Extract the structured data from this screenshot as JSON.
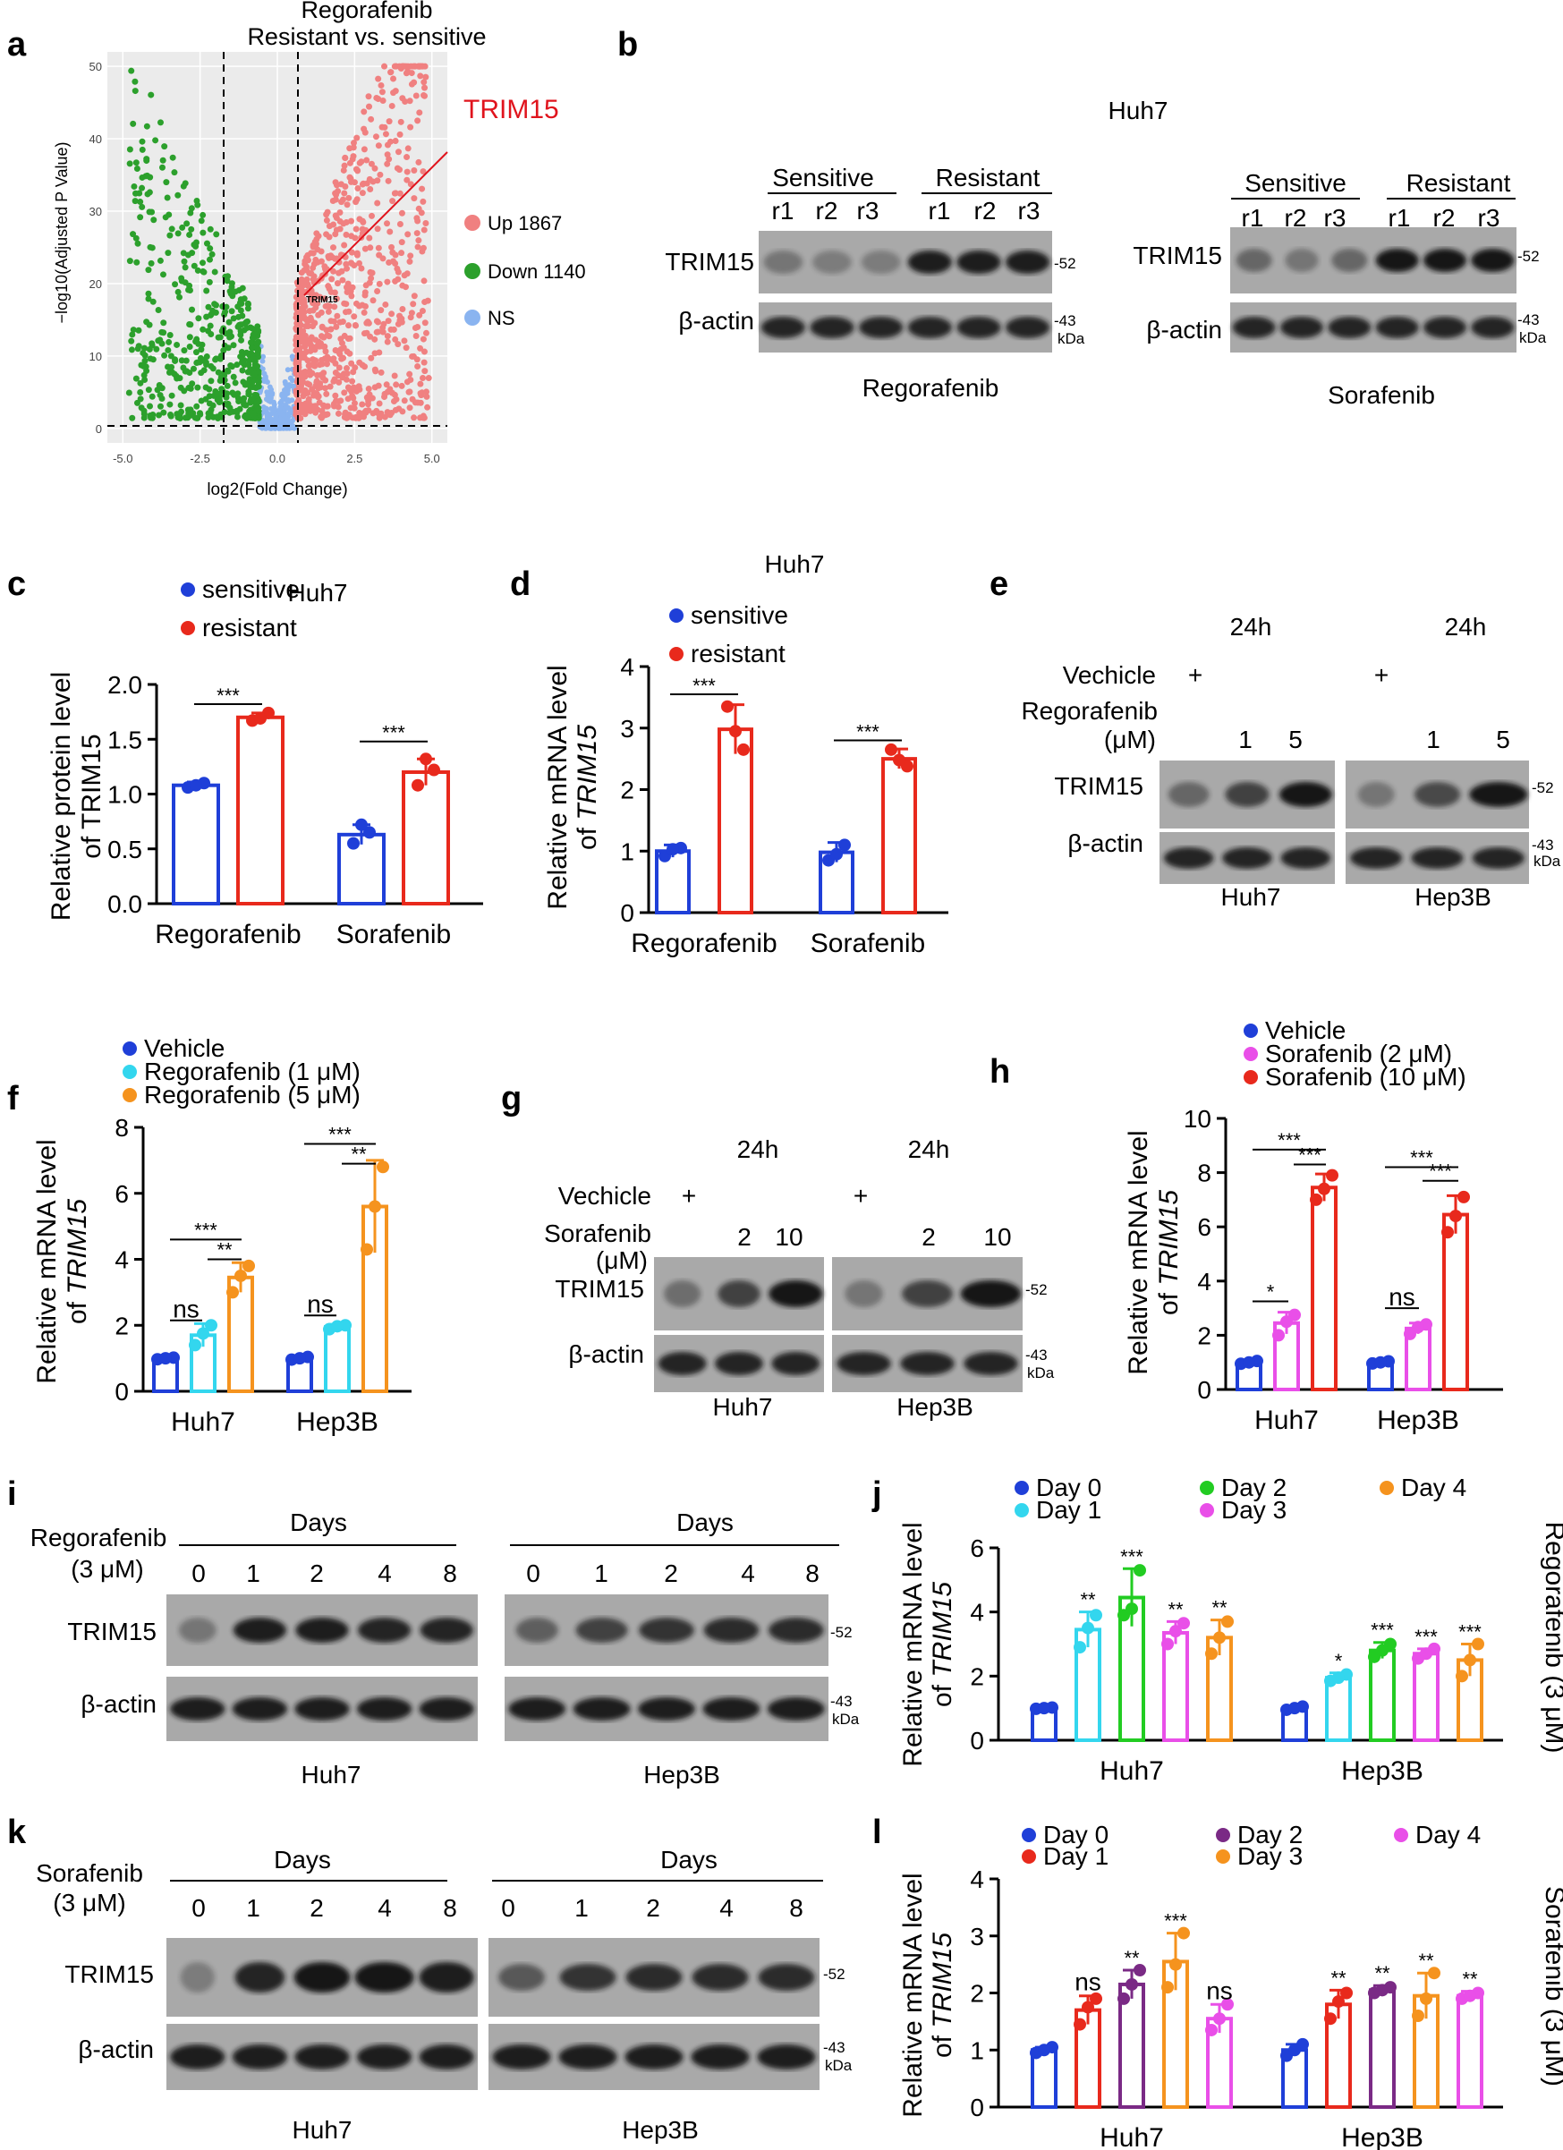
{
  "panel_labels": [
    "a",
    "b",
    "c",
    "d",
    "e",
    "f",
    "g",
    "h",
    "i",
    "j",
    "k",
    "l"
  ],
  "colors": {
    "up": "#f08080",
    "down": "#2ca02c",
    "ns": "#8ab4f0",
    "blue": "#1f3fd8",
    "red": "#e8291c",
    "cyan": "#33d6ee",
    "orange": "#f5931e",
    "magenta": "#e94fe8",
    "green": "#22cc22",
    "purple": "#7a2a85",
    "trim_red": "#e0141d"
  },
  "panel_a": {
    "title_line1": "Regorafenib",
    "title_line2": "Resistant vs. sensitive",
    "highlight_label": "TRIM15",
    "point_label": "TRIM15",
    "ylabel": "−log10(Adjusted P Value)",
    "xlabel": "log2(Fold Change)",
    "legend": [
      "Up 1867",
      "Down 1140",
      "NS"
    ]
  },
  "panel_b": {
    "cell_line": "Huh7",
    "groups": [
      "Sensitive",
      "Resistant"
    ],
    "lanes": [
      "r1",
      "r2",
      "r3",
      "r1",
      "r2",
      "r3"
    ],
    "protein": "TRIM15",
    "loading": "β-actin",
    "mw_52": "-52",
    "mw_43": "-43",
    "kda": "kDa",
    "drug_left": "Regorafenib",
    "drug_right": "Sorafenib"
  },
  "panel_e": {
    "time": "24h",
    "vehicle_label": "Vechicle",
    "plus": "+",
    "drug_label": "Regorafenib",
    "unit": "(μM)",
    "doses": [
      "1",
      "5"
    ],
    "protein": "TRIM15",
    "loading": "β-actin",
    "cells": [
      "Huh7",
      "Hep3B"
    ],
    "mw_52": "-52",
    "mw_43": "-43",
    "kda": "kDa"
  },
  "panel_g": {
    "time": "24h",
    "vehicle_label": "Vechicle",
    "plus": "+",
    "drug_label": "Sorafenib",
    "unit": "(μM)",
    "doses": [
      "2",
      "10"
    ],
    "protein": "TRIM15",
    "loading": "β-actin",
    "cells": [
      "Huh7",
      "Hep3B"
    ],
    "mw_52": "-52",
    "mw_43": "-43",
    "kda": "kDa"
  },
  "panel_i": {
    "drug_label": "Regorafenib",
    "dose": "(3 μM)",
    "days_label": "Days",
    "days": [
      "0",
      "1",
      "2",
      "4",
      "8"
    ],
    "protein": "TRIM15",
    "loading": "β-actin",
    "cells": [
      "Huh7",
      "Hep3B"
    ],
    "mw_52": "-52",
    "mw_43": "-43",
    "kda": "kDa"
  },
  "panel_k": {
    "drug_label": "Sorafenib",
    "dose": "(3 μM)",
    "days_label": "Days",
    "days": [
      "0",
      "1",
      "2",
      "4",
      "8"
    ],
    "protein": "TRIM15",
    "loading": "β-actin",
    "cells": [
      "Huh7",
      "Hep3B"
    ],
    "mw_52": "-52",
    "mw_43": "-43",
    "kda": "kDa"
  },
  "chart_data": [
    {
      "panel": "a",
      "type": "scatter",
      "title": "Regorafenib Resistant vs. sensitive",
      "xlabel": "log2(Fold Change)",
      "ylabel": "−log10(Adjusted P Value)",
      "xlim": [
        -5.5,
        5.5
      ],
      "ylim": [
        -2,
        52
      ],
      "xticks": [
        "-5.0",
        "-2.5",
        "0.0",
        "2.5",
        "5.0"
      ],
      "yticks": [
        "0",
        "10",
        "20",
        "30",
        "40",
        "50"
      ],
      "thresholds": {
        "x": [
          -0.58,
          0.58
        ],
        "y": 1.3
      },
      "legend": [
        "Up 1867",
        "Down 1140",
        "NS"
      ],
      "annotation": {
        "label": "TRIM15",
        "x": 0.7,
        "y": 19
      }
    },
    {
      "panel": "c",
      "type": "bar",
      "title": "Huh7",
      "ylabel": "Relative protein level of TRIM15",
      "categories": [
        "Regorafenib",
        "Sorafenib"
      ],
      "ylim": [
        0,
        2.0
      ],
      "yticks": [
        "0.0",
        "0.5",
        "1.0",
        "1.5",
        "2.0"
      ],
      "series": [
        {
          "name": "sensitive",
          "values": [
            1.08,
            0.63
          ],
          "errors": [
            0.03,
            0.09
          ],
          "points": [
            [
              1.06,
              1.1,
              1.08
            ],
            [
              0.55,
              0.65,
              0.72
            ]
          ]
        },
        {
          "name": "resistant",
          "values": [
            1.7,
            1.2
          ],
          "errors": [
            0.04,
            0.12
          ],
          "points": [
            [
              1.67,
              1.74,
              1.69
            ],
            [
              1.08,
              1.22,
              1.32
            ]
          ]
        }
      ],
      "significance": [
        "***",
        "***"
      ]
    },
    {
      "panel": "d",
      "type": "bar",
      "title": "Huh7",
      "ylabel": "Relative mRNA level of TRIM15",
      "categories": [
        "Regorafenib",
        "Sorafenib"
      ],
      "ylim": [
        0,
        4
      ],
      "yticks": [
        "0",
        "1",
        "2",
        "3",
        "4"
      ],
      "series": [
        {
          "name": "sensitive",
          "values": [
            1.0,
            0.98
          ],
          "errors": [
            0.1,
            0.16
          ],
          "points": [
            [
              0.92,
              1.05,
              1.03
            ],
            [
              0.85,
              1.1,
              0.95
            ]
          ]
        },
        {
          "name": "resistant",
          "values": [
            2.98,
            2.5
          ],
          "errors": [
            0.4,
            0.16
          ],
          "points": [
            [
              3.35,
              2.65,
              2.95
            ],
            [
              2.65,
              2.38,
              2.48
            ]
          ]
        }
      ],
      "significance": [
        "***",
        "***"
      ]
    },
    {
      "panel": "f",
      "type": "bar",
      "ylabel": "Relative mRNA level of TRIM15",
      "categories": [
        "Huh7",
        "Hep3B"
      ],
      "ylim": [
        0,
        8
      ],
      "yticks": [
        "0",
        "2",
        "4",
        "6",
        "8"
      ],
      "series": [
        {
          "name": "Vehicle",
          "values": [
            1.0,
            1.0
          ],
          "errors": [
            0.05,
            0.05
          ],
          "points": [
            [
              0.97,
              1.02,
              1.0
            ],
            [
              0.96,
              1.04,
              1.0
            ]
          ]
        },
        {
          "name": "Regorafenib (1 μM)",
          "values": [
            1.7,
            1.95
          ],
          "errors": [
            0.35,
            0.08
          ],
          "points": [
            [
              1.4,
              2.0,
              1.75
            ],
            [
              1.88,
              2.0,
              1.97
            ]
          ]
        },
        {
          "name": "Regorafenib (5 μM)",
          "values": [
            3.45,
            5.6
          ],
          "errors": [
            0.45,
            1.4
          ],
          "points": [
            [
              3.0,
              3.8,
              3.5
            ],
            [
              4.3,
              6.8,
              5.6
            ]
          ]
        }
      ],
      "significance": {
        "Huh7": [
          "ns",
          "***",
          "**"
        ],
        "Hep3B": [
          "ns",
          "***",
          "**"
        ]
      }
    },
    {
      "panel": "h",
      "type": "bar",
      "ylabel": "Relative mRNA level of TRIM15",
      "categories": [
        "Huh7",
        "Hep3B"
      ],
      "ylim": [
        0,
        10
      ],
      "yticks": [
        "0",
        "2",
        "4",
        "6",
        "8",
        "10"
      ],
      "series": [
        {
          "name": "Vehicle",
          "values": [
            1.0,
            1.0
          ],
          "errors": [
            0.08,
            0.06
          ],
          "points": [
            [
              0.95,
              1.05,
              1.0
            ],
            [
              0.96,
              1.04,
              1.0
            ]
          ]
        },
        {
          "name": "Sorafenib (2 μM)",
          "values": [
            2.45,
            2.25
          ],
          "errors": [
            0.4,
            0.2
          ],
          "points": [
            [
              2.0,
              2.75,
              2.5
            ],
            [
              2.05,
              2.4,
              2.3
            ]
          ]
        },
        {
          "name": "Sorafenib (10 μM)",
          "values": [
            7.45,
            6.45
          ],
          "errors": [
            0.5,
            0.7
          ],
          "points": [
            [
              7.0,
              7.9,
              7.4
            ],
            [
              5.8,
              7.1,
              6.4
            ]
          ]
        }
      ],
      "significance": {
        "Huh7": [
          "*",
          "***",
          "***"
        ],
        "Hep3B": [
          "ns",
          "***",
          "***"
        ]
      }
    },
    {
      "panel": "j",
      "type": "bar",
      "ylabel": "Relative mRNA level of TRIM15",
      "side_label": "Regorafenib (3 μM)",
      "categories": [
        "Huh7",
        "Hep3B"
      ],
      "ylim": [
        0,
        6
      ],
      "yticks": [
        "0",
        "2",
        "4",
        "6"
      ],
      "series": [
        {
          "name": "Day 0",
          "values": [
            1.0,
            1.0
          ],
          "errors": [
            0.04,
            0.06
          ],
          "points": [
            [
              0.98,
              1.02,
              1.0
            ],
            [
              0.95,
              1.05,
              1.0
            ]
          ]
        },
        {
          "name": "Day 1",
          "values": [
            3.45,
            1.95
          ],
          "errors": [
            0.55,
            0.15
          ],
          "points": [
            [
              2.9,
              3.9,
              3.5
            ],
            [
              1.85,
              2.05,
              1.95
            ]
          ]
        },
        {
          "name": "Day 2",
          "values": [
            4.45,
            2.8
          ],
          "errors": [
            0.9,
            0.25
          ],
          "points": [
            [
              3.9,
              5.3,
              4.1
            ],
            [
              2.6,
              3.0,
              2.8
            ]
          ]
        },
        {
          "name": "Day 3",
          "values": [
            3.35,
            2.7
          ],
          "errors": [
            0.35,
            0.15
          ],
          "points": [
            [
              3.0,
              3.65,
              3.4
            ],
            [
              2.55,
              2.85,
              2.7
            ]
          ]
        },
        {
          "name": "Day 4",
          "values": [
            3.2,
            2.5
          ],
          "errors": [
            0.55,
            0.5
          ],
          "points": [
            [
              2.7,
              3.7,
              3.2
            ],
            [
              2.0,
              3.0,
              2.5
            ]
          ]
        }
      ],
      "significance": {
        "Huh7": [
          "",
          "**",
          "***",
          "**",
          "**"
        ],
        "Hep3B": [
          "",
          "*",
          "***",
          "***",
          "***"
        ]
      }
    },
    {
      "panel": "l",
      "type": "bar",
      "ylabel": "Relative mRNA level of TRIM15",
      "side_label": "Sorafenib (3 μM)",
      "categories": [
        "Huh7",
        "Hep3B"
      ],
      "ylim": [
        0,
        4
      ],
      "yticks": [
        "0",
        "1",
        "2",
        "3",
        "4"
      ],
      "series": [
        {
          "name": "Day 0",
          "values": [
            1.0,
            1.0
          ],
          "errors": [
            0.05,
            0.1
          ],
          "points": [
            [
              0.95,
              1.05,
              1.0
            ],
            [
              0.9,
              1.1,
              1.0
            ]
          ]
        },
        {
          "name": "Day 1",
          "values": [
            1.7,
            1.8
          ],
          "errors": [
            0.25,
            0.25
          ],
          "points": [
            [
              1.45,
              1.9,
              1.75
            ],
            [
              1.55,
              2.0,
              1.85
            ]
          ]
        },
        {
          "name": "Day 2",
          "values": [
            2.15,
            2.05
          ],
          "errors": [
            0.25,
            0.08
          ],
          "points": [
            [
              1.9,
              2.4,
              2.15
            ],
            [
              2.0,
              2.1,
              2.05
            ]
          ]
        },
        {
          "name": "Day 3",
          "values": [
            2.55,
            1.95
          ],
          "errors": [
            0.5,
            0.4
          ],
          "points": [
            [
              2.1,
              3.05,
              2.5
            ],
            [
              1.6,
              2.35,
              1.9
            ]
          ]
        },
        {
          "name": "Day 4",
          "values": [
            1.55,
            1.95
          ],
          "errors": [
            0.25,
            0.08
          ],
          "points": [
            [
              1.35,
              1.8,
              1.55
            ],
            [
              1.9,
              2.0,
              1.95
            ]
          ]
        }
      ],
      "significance": {
        "Huh7": [
          "",
          "ns",
          "**",
          "***",
          "ns"
        ],
        "Hep3B": [
          "",
          "**",
          "**",
          "**",
          "**"
        ]
      }
    }
  ]
}
